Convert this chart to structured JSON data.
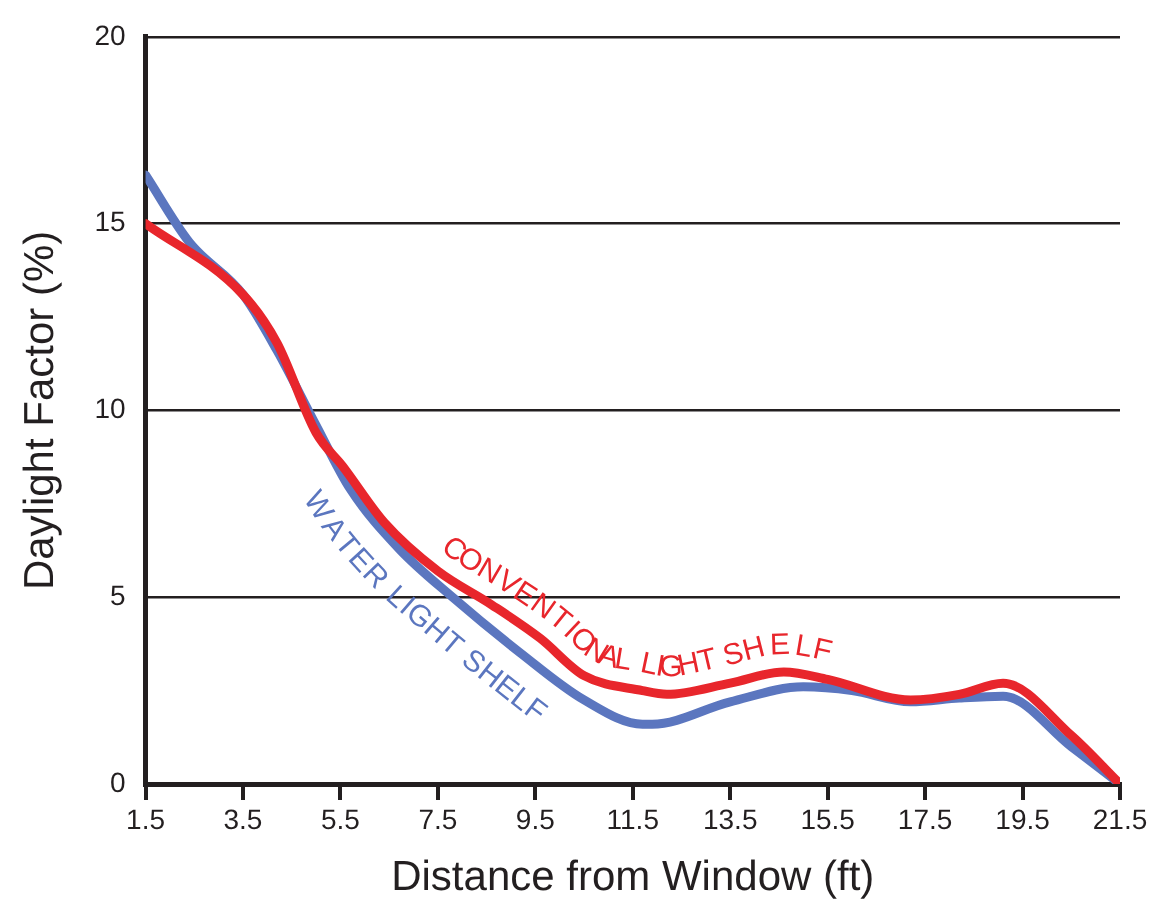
{
  "chart_data": {
    "type": "line",
    "xlabel": "Distance from Window (ft)",
    "ylabel": "Daylight Factor (%)",
    "series": [
      {
        "name": "CONVENTIONAL LIGHT SHELF",
        "color": "#e8262c",
        "x": [
          1.5,
          3.5,
          4.2,
          5.0,
          5.55,
          6.4,
          7.5,
          8.6,
          9.6,
          10.5,
          11.7,
          12.2,
          13.5,
          14.6,
          15.5,
          17.2,
          18.2,
          19.1,
          20.5,
          21.5
        ],
        "values": [
          15,
          13.1,
          11.8,
          9.4,
          8.5,
          7.0,
          5.7,
          4.8,
          3.9,
          2.9,
          2.5,
          2.4,
          2.7,
          3.0,
          2.8,
          2.25,
          2.4,
          2.7,
          1.3,
          0
        ]
      },
      {
        "name": "WATER LIGHT SHELF",
        "color": "#5b76bf",
        "x": [
          1.5,
          2.4,
          3.5,
          4.2,
          5.0,
          5.7,
          6.7,
          7.8,
          9.2,
          10.5,
          11.7,
          11.9,
          13.5,
          15.0,
          16.0,
          17.2,
          18.2,
          19.1,
          20.5,
          21.5
        ],
        "values": [
          16.3,
          14.5,
          13.1,
          11.6,
          9.6,
          7.9,
          6.3,
          5.0,
          3.5,
          2.25,
          1.6,
          1.6,
          2.2,
          2.6,
          2.5,
          2.2,
          2.3,
          2.35,
          1.0,
          0
        ]
      }
    ],
    "xlim": [
      1.5,
      21.5
    ],
    "xticks": [
      1.5,
      3.5,
      5.5,
      7.5,
      9.5,
      11.5,
      13.5,
      15.5,
      17.5,
      19.5,
      21.5
    ],
    "ylim": [
      0,
      20
    ],
    "yticks": [
      0,
      5,
      10,
      15,
      20
    ],
    "grid": "y",
    "legend": false,
    "marker": "none",
    "line_style": "solid"
  }
}
